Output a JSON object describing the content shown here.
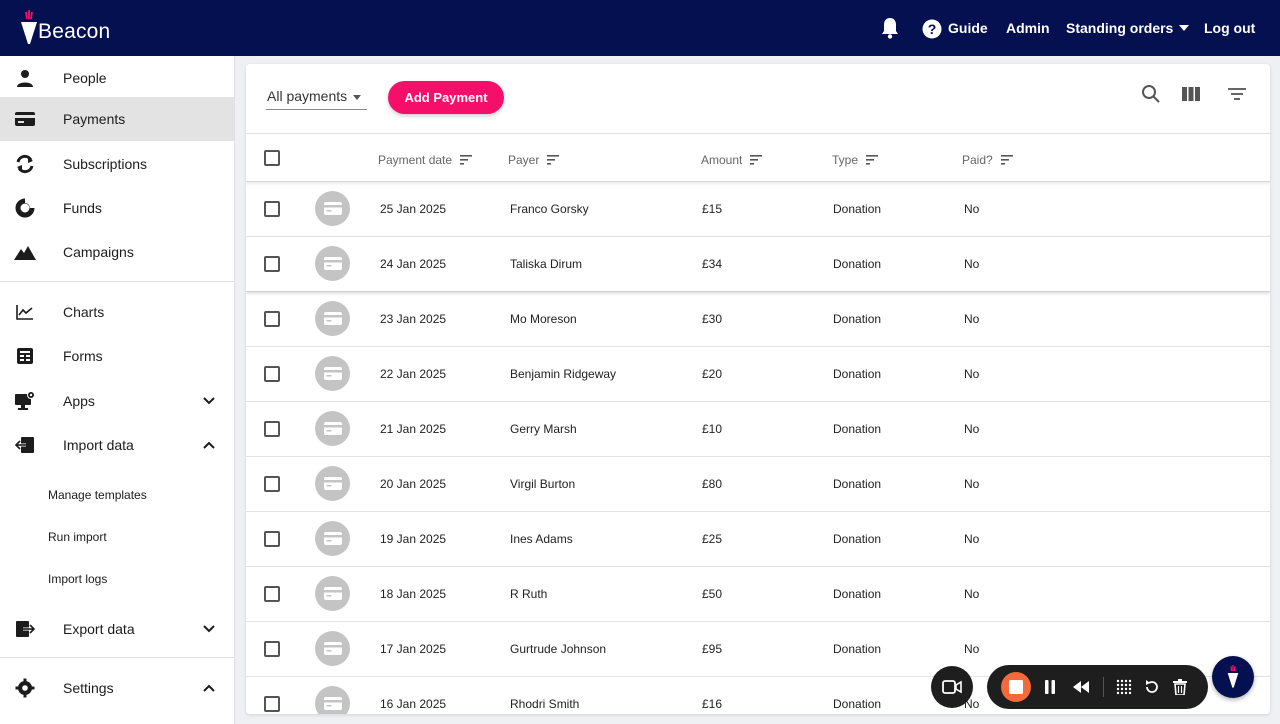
{
  "header": {
    "brand": "Beacon",
    "guide": "Guide",
    "admin": "Admin",
    "standing_orders": "Standing orders",
    "logout": "Log out"
  },
  "sidebar": {
    "items": [
      {
        "label": "People",
        "icon": "person-icon"
      },
      {
        "label": "Payments",
        "icon": "credit-card-icon"
      },
      {
        "label": "Subscriptions",
        "icon": "refresh-icon"
      },
      {
        "label": "Funds",
        "icon": "donut-icon"
      },
      {
        "label": "Campaigns",
        "icon": "mountain-icon"
      },
      {
        "label": "Charts",
        "icon": "line-chart-icon"
      },
      {
        "label": "Forms",
        "icon": "form-icon"
      },
      {
        "label": "Apps",
        "icon": "monitor-gear-icon"
      },
      {
        "label": "Import data",
        "icon": "import-icon"
      },
      {
        "label": "Export data",
        "icon": "export-icon"
      },
      {
        "label": "Settings",
        "icon": "gear-icon"
      }
    ],
    "import_sub": [
      "Manage templates",
      "Run import",
      "Import logs"
    ]
  },
  "toolbar": {
    "filter": "All payments",
    "add_payment": "Add Payment"
  },
  "table": {
    "columns": [
      "Payment date",
      "Payer",
      "Amount",
      "Type",
      "Paid?"
    ],
    "rows": [
      {
        "date": "25 Jan 2025",
        "payer": "Franco Gorsky",
        "amount": "£15",
        "type": "Donation",
        "paid": "No"
      },
      {
        "date": "24 Jan 2025",
        "payer": "Taliska Dirum",
        "amount": "£34",
        "type": "Donation",
        "paid": "No"
      },
      {
        "date": "23 Jan 2025",
        "payer": "Mo Moreson",
        "amount": "£30",
        "type": "Donation",
        "paid": "No"
      },
      {
        "date": "22 Jan 2025",
        "payer": "Benjamin Ridgeway",
        "amount": "£20",
        "type": "Donation",
        "paid": "No"
      },
      {
        "date": "21 Jan 2025",
        "payer": "Gerry Marsh",
        "amount": "£10",
        "type": "Donation",
        "paid": "No"
      },
      {
        "date": "20 Jan 2025",
        "payer": "Virgil Burton",
        "amount": "£80",
        "type": "Donation",
        "paid": "No"
      },
      {
        "date": "19 Jan 2025",
        "payer": "Ines Adams",
        "amount": "£25",
        "type": "Donation",
        "paid": "No"
      },
      {
        "date": "18 Jan 2025",
        "payer": "R Ruth",
        "amount": "£50",
        "type": "Donation",
        "paid": "No"
      },
      {
        "date": "17 Jan 2025",
        "payer": "Gurtrude Johnson",
        "amount": "£95",
        "type": "Donation",
        "paid": "No"
      },
      {
        "date": "16 Jan 2025",
        "payer": "Rhodri Smith",
        "amount": "£16",
        "type": "Donation",
        "paid": "No"
      }
    ]
  },
  "colors": {
    "topbar": "#04104f",
    "accent": "#f50f6b",
    "record": "#f26a3b"
  }
}
